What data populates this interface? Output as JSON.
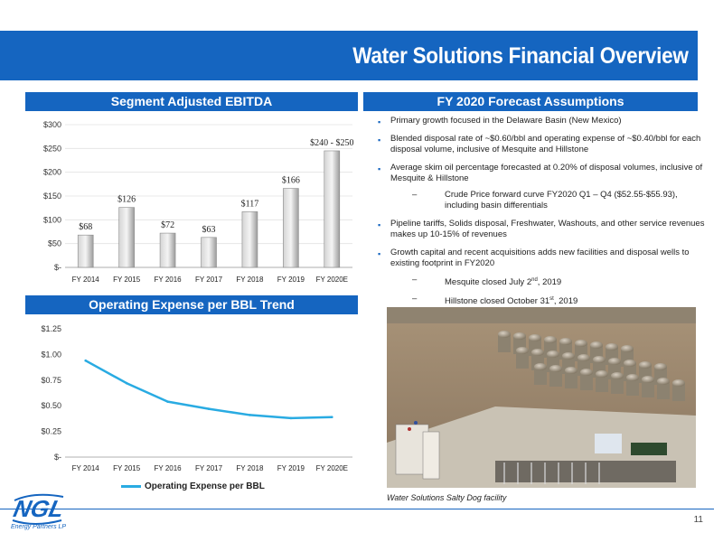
{
  "title": "Water Solutions Financial Overview",
  "sections": {
    "ebitda_header": "Segment Adjusted EBITDA",
    "forecast_header": "FY 2020 Forecast Assumptions",
    "opex_header": "Operating Expense per BBL Trend"
  },
  "bullets": [
    {
      "text": "Primary growth focused in the Delaware Basin (New Mexico)",
      "subs": []
    },
    {
      "text": "Blended disposal rate of ~$0.60/bbl and operating expense of ~$0.40/bbl for each disposal volume, inclusive of Mesquite and Hillstone",
      "subs": []
    },
    {
      "text": "Average skim oil percentage forecasted at 0.20% of disposal volumes, inclusive of Mesquite & Hillstone",
      "subs": [
        "Crude Price forward curve FY2020 Q1 – Q4 ($52.55-$55.93), including basin differentials"
      ]
    },
    {
      "text": "Pipeline tariffs, Solids disposal, Freshwater, Washouts, and other service revenues makes up 10-15% of revenues",
      "subs": []
    },
    {
      "text": "Growth capital and recent acquisitions adds new facilities and disposal wells to existing footprint in FY2020",
      "subs": [
        "Mesquite closed July 2nd, 2019",
        "Hillstone closed October 31st, 2019"
      ]
    }
  ],
  "photo_caption": "Water Solutions Salty Dog facility",
  "page_number": "11",
  "logo": {
    "text": "NGL",
    "tagline": "Energy Partners LP"
  },
  "colors": {
    "brand": "#1565c0",
    "line": "#29abe2",
    "bar": "#b0b0b0"
  },
  "chart_data": [
    {
      "type": "bar",
      "categories": [
        "FY 2014",
        "FY 2015",
        "FY 2016",
        "FY 2017",
        "FY 2018",
        "FY 2019",
        "FY 2020E"
      ],
      "values": [
        68,
        126,
        72,
        63,
        117,
        166,
        245
      ],
      "data_labels": [
        "$68",
        "$126",
        "$72",
        "$63",
        "$117",
        "$166",
        "$240 - $250"
      ],
      "yticks": [
        "$-",
        "$50",
        "$100",
        "$150",
        "$200",
        "$250",
        "$300"
      ],
      "ylim": [
        0,
        300
      ],
      "title": "",
      "xlabel": "",
      "ylabel": ""
    },
    {
      "type": "line",
      "categories": [
        "FY 2014",
        "FY 2015",
        "FY 2016",
        "FY 2017",
        "FY 2018",
        "FY 2019",
        "FY 2020E"
      ],
      "series": [
        {
          "name": "Operating Expense per BBL",
          "values": [
            0.94,
            0.72,
            0.54,
            0.47,
            0.41,
            0.38,
            0.39
          ]
        }
      ],
      "yticks": [
        "$-",
        "$0.25",
        "$0.50",
        "$0.75",
        "$1.00",
        "$1.25"
      ],
      "ylim": [
        0,
        1.25
      ],
      "legend": "bottom",
      "title": "",
      "xlabel": "",
      "ylabel": ""
    }
  ]
}
